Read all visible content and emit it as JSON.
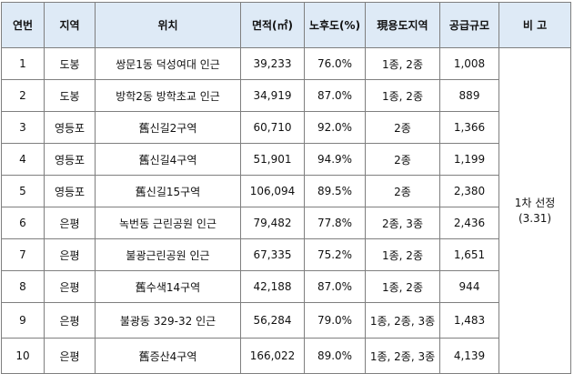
{
  "headers": [
    "연번",
    "지역",
    "위치",
    "면적(㎡)",
    "노후도(%)",
    "現용도지역",
    "공급규모",
    "비 고"
  ],
  "rows": [
    {
      "no": "1",
      "region": "도봉",
      "location": "쌍문1동 덕성여대 인근",
      "area": "39,233",
      "aging": "76.0%",
      "zoning": "1종, 2종",
      "supply": "1,008"
    },
    {
      "no": "2",
      "region": "도봉",
      "location": "방학2동 방학초교 인근",
      "area": "34,919",
      "aging": "87.0%",
      "zoning": "1종, 2종",
      "supply": "889"
    },
    {
      "no": "3",
      "region": "영등포",
      "location": "舊신길2구역",
      "area": "60,710",
      "aging": "92.0%",
      "zoning": "2종",
      "supply": "1,366"
    },
    {
      "no": "4",
      "region": "영등포",
      "location": "舊신길4구역",
      "area": "51,901",
      "aging": "94.9%",
      "zoning": "2종",
      "supply": "1,199"
    },
    {
      "no": "5",
      "region": "영등포",
      "location": "舊신길15구역",
      "area": "106,094",
      "aging": "89.5%",
      "zoning": "2종",
      "supply": "2,380"
    },
    {
      "no": "6",
      "region": "은평",
      "location": "녹번동 근린공원 인근",
      "area": "79,482",
      "aging": "77.8%",
      "zoning": "2종, 3종",
      "supply": "2,436"
    },
    {
      "no": "7",
      "region": "은평",
      "location": "불광근린공원 인근",
      "area": "67,335",
      "aging": "75.2%",
      "zoning": "1종, 2종",
      "supply": "1,651"
    },
    {
      "no": "8",
      "region": "은평",
      "location": "舊수색14구역",
      "area": "42,188",
      "aging": "87.0%",
      "zoning": "1종, 2종",
      "supply": "944"
    },
    {
      "no": "9",
      "region": "은평",
      "location": "불광동 329-32 인근",
      "area": "56,284",
      "aging": "79.0%",
      "zoning": "1종, 2종, 3종",
      "supply": "1,483"
    },
    {
      "no": "10",
      "region": "은평",
      "location": "舊증산4구역",
      "area": "166,022",
      "aging": "89.0%",
      "zoning": "1종, 2종, 3종",
      "supply": "4,139"
    }
  ],
  "remark": {
    "line1": "1차 선정",
    "line2": "(3.31)"
  }
}
